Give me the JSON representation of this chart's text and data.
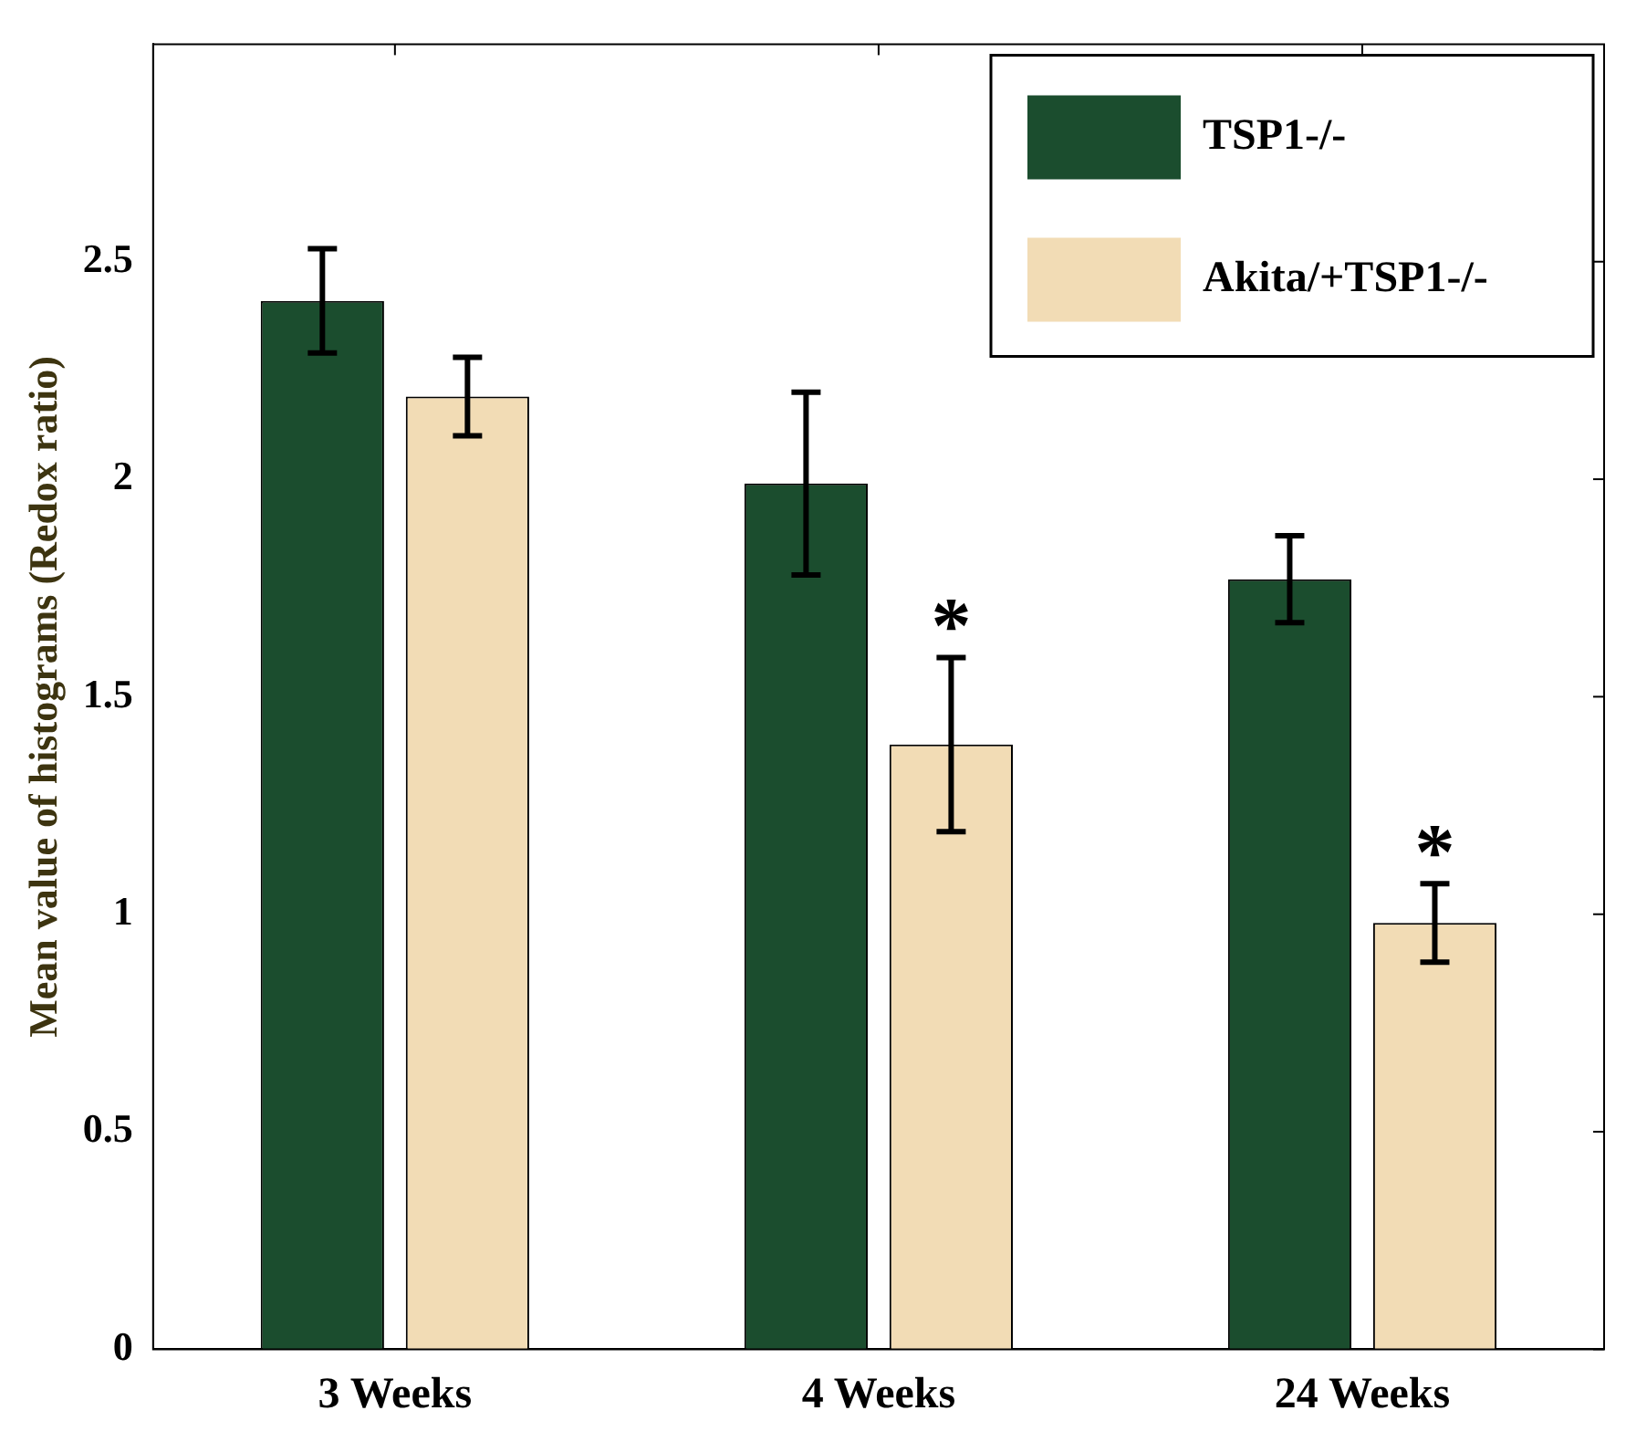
{
  "chart_data": {
    "type": "bar",
    "ylabel": "Mean value of histograms (Redox ratio)",
    "categories": [
      "3 Weeks",
      "4 Weeks",
      "24 Weeks"
    ],
    "series": [
      {
        "name": "TSP1-/-",
        "color": "#1b4d2e",
        "values": [
          2.41,
          1.99,
          1.77
        ],
        "errors": [
          0.12,
          0.21,
          0.1
        ]
      },
      {
        "name": "Akita/+TSP1-/-",
        "color": "#f2dcb5",
        "values": [
          2.19,
          1.39,
          0.98
        ],
        "errors": [
          0.09,
          0.2,
          0.09
        ]
      }
    ],
    "ylim": [
      0,
      3
    ],
    "yticks": [
      0,
      0.5,
      1,
      1.5,
      2,
      2.5
    ],
    "grid": false,
    "legend": "top right",
    "annotations": [
      "*",
      "*"
    ]
  }
}
